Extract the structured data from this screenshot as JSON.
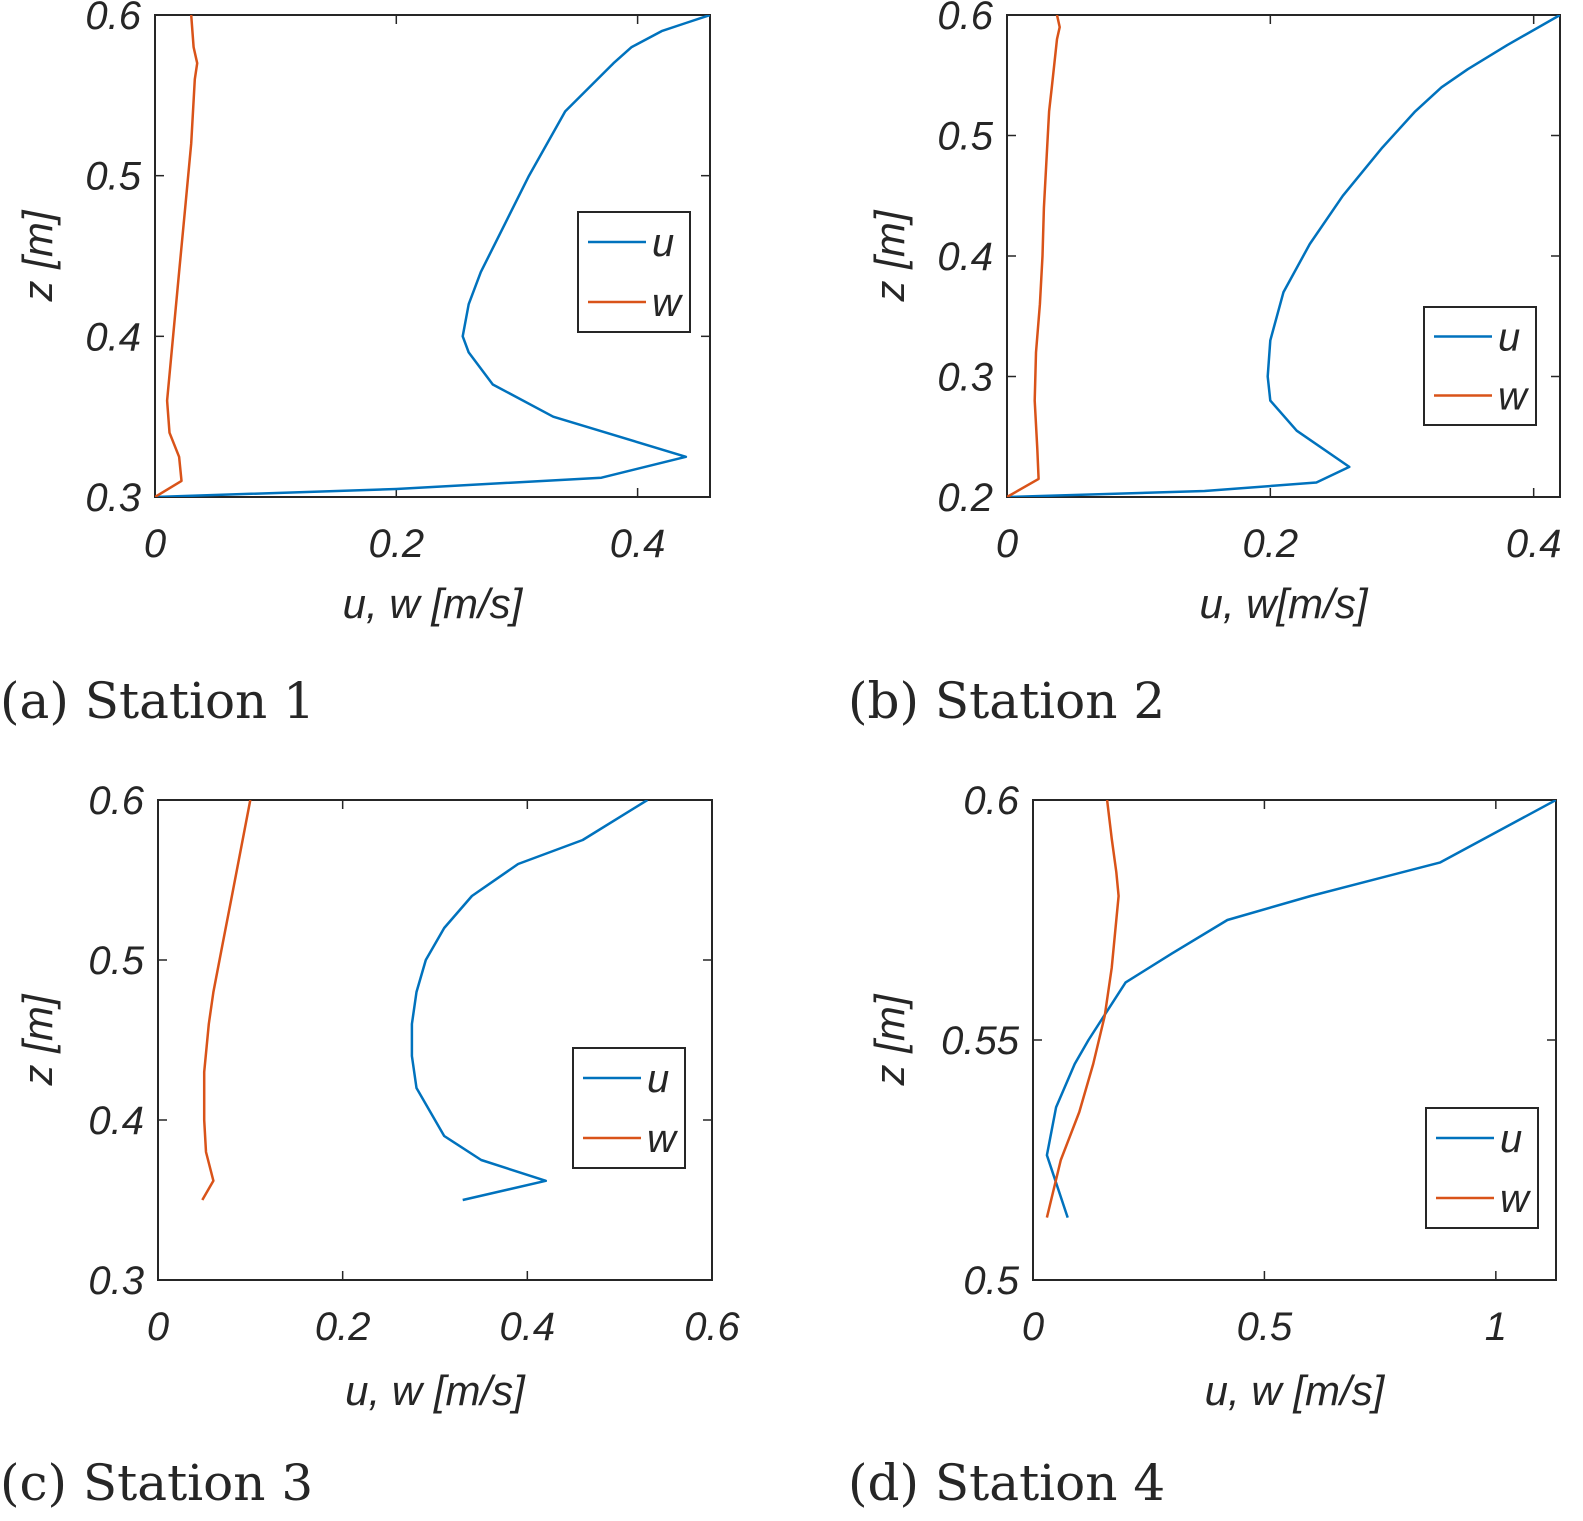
{
  "chart_data": [
    {
      "type": "line",
      "caption": "(a) Station 1",
      "xlabel": "u, w [m/s]",
      "ylabel": "z [m]",
      "xlim": [
        0,
        0.46
      ],
      "ylim": [
        0.3,
        0.6
      ],
      "xticks": [
        0,
        0.2,
        0.4
      ],
      "xtick_labels": [
        "0",
        "0.2",
        "0.4"
      ],
      "yticks": [
        0.3,
        0.4,
        0.5,
        0.6
      ],
      "ytick_labels": [
        "0.3",
        "0.4",
        "0.5",
        "0.6"
      ],
      "legend": "center-right",
      "series": [
        {
          "name": "u",
          "color": "#0072BD",
          "x": [
            0,
            0.2,
            0.37,
            0.44,
            0.33,
            0.28,
            0.26,
            0.255,
            0.26,
            0.27,
            0.29,
            0.31,
            0.34,
            0.38,
            0.395,
            0.42,
            0.44,
            0.46
          ],
          "y": [
            0.3,
            0.305,
            0.312,
            0.325,
            0.35,
            0.37,
            0.39,
            0.4,
            0.42,
            0.44,
            0.47,
            0.5,
            0.54,
            0.57,
            0.58,
            0.59,
            0.595,
            0.6
          ]
        },
        {
          "name": "w",
          "color": "#D95319",
          "x": [
            0,
            0.022,
            0.02,
            0.012,
            0.01,
            0.015,
            0.02,
            0.025,
            0.03,
            0.033,
            0.035,
            0.032,
            0.03
          ],
          "y": [
            0.3,
            0.31,
            0.325,
            0.34,
            0.36,
            0.4,
            0.44,
            0.48,
            0.52,
            0.56,
            0.57,
            0.58,
            0.6
          ]
        }
      ]
    },
    {
      "type": "line",
      "caption": "(b) Station 2",
      "xlabel": "u, w[m/s]",
      "ylabel": "z [m]",
      "xlim": [
        0,
        0.42
      ],
      "ylim": [
        0.2,
        0.6
      ],
      "xticks": [
        0,
        0.2,
        0.4
      ],
      "xtick_labels": [
        "0",
        "0.2",
        "0.4"
      ],
      "yticks": [
        0.2,
        0.3,
        0.4,
        0.5,
        0.6
      ],
      "ytick_labels": [
        "0.2",
        "0.3",
        "0.4",
        "0.5",
        "0.6"
      ],
      "legend": "lower-right",
      "series": [
        {
          "name": "u",
          "color": "#0072BD",
          "x": [
            0,
            0.15,
            0.235,
            0.26,
            0.22,
            0.2,
            0.198,
            0.2,
            0.21,
            0.23,
            0.255,
            0.285,
            0.31,
            0.33,
            0.35,
            0.38,
            0.42
          ],
          "y": [
            0.2,
            0.205,
            0.212,
            0.225,
            0.255,
            0.28,
            0.3,
            0.33,
            0.37,
            0.41,
            0.45,
            0.49,
            0.52,
            0.54,
            0.555,
            0.575,
            0.6
          ]
        },
        {
          "name": "w",
          "color": "#D95319",
          "x": [
            0,
            0.024,
            0.023,
            0.021,
            0.022,
            0.025,
            0.027,
            0.028,
            0.03,
            0.032,
            0.034,
            0.036,
            0.038,
            0.04,
            0.038
          ],
          "y": [
            0.2,
            0.215,
            0.24,
            0.28,
            0.32,
            0.36,
            0.4,
            0.44,
            0.48,
            0.52,
            0.54,
            0.56,
            0.58,
            0.59,
            0.6
          ]
        }
      ]
    },
    {
      "type": "line",
      "caption": "(c) Station 3",
      "xlabel": "u, w [m/s]",
      "ylabel": "z [m]",
      "xlim": [
        0,
        0.6
      ],
      "ylim": [
        0.3,
        0.6
      ],
      "xticks": [
        0,
        0.2,
        0.4,
        0.6
      ],
      "xtick_labels": [
        "0",
        "0.2",
        "0.4",
        "0.6"
      ],
      "yticks": [
        0.3,
        0.4,
        0.5,
        0.6
      ],
      "ytick_labels": [
        "0.3",
        "0.4",
        "0.5",
        "0.6"
      ],
      "legend": "lower-right",
      "series": [
        {
          "name": "u",
          "color": "#0072BD",
          "x": [
            0.33,
            0.42,
            0.35,
            0.31,
            0.28,
            0.275,
            0.275,
            0.28,
            0.29,
            0.31,
            0.34,
            0.39,
            0.46,
            0.53
          ],
          "y": [
            0.35,
            0.362,
            0.375,
            0.39,
            0.42,
            0.44,
            0.46,
            0.48,
            0.5,
            0.52,
            0.54,
            0.56,
            0.575,
            0.6
          ]
        },
        {
          "name": "w",
          "color": "#D95319",
          "x": [
            0.048,
            0.06,
            0.052,
            0.05,
            0.05,
            0.055,
            0.06,
            0.07,
            0.08,
            0.09,
            0.1
          ],
          "y": [
            0.35,
            0.362,
            0.38,
            0.4,
            0.43,
            0.46,
            0.48,
            0.51,
            0.54,
            0.57,
            0.6
          ]
        }
      ]
    },
    {
      "type": "line",
      "caption": "(d) Station 4",
      "xlabel": "u, w [m/s]",
      "ylabel": "z [m]",
      "xlim": [
        0,
        1.13
      ],
      "ylim": [
        0.5,
        0.6
      ],
      "xticks": [
        0,
        0.5,
        1
      ],
      "xtick_labels": [
        "0",
        "0.5",
        "1"
      ],
      "yticks": [
        0.5,
        0.55,
        0.6
      ],
      "ytick_labels": [
        "0.5",
        "0.55",
        "0.6"
      ],
      "legend": "lower-right",
      "series": [
        {
          "name": "u",
          "color": "#0072BD",
          "x": [
            0.075,
            0.03,
            0.05,
            0.09,
            0.12,
            0.2,
            0.3,
            0.42,
            0.6,
            0.88,
            1.13
          ],
          "y": [
            0.513,
            0.526,
            0.536,
            0.545,
            0.55,
            0.562,
            0.568,
            0.575,
            0.58,
            0.587,
            0.6
          ]
        },
        {
          "name": "w",
          "color": "#D95319",
          "x": [
            0.03,
            0.06,
            0.1,
            0.13,
            0.155,
            0.17,
            0.18,
            0.185,
            0.18,
            0.17,
            0.16
          ],
          "y": [
            0.513,
            0.525,
            0.535,
            0.545,
            0.555,
            0.565,
            0.575,
            0.58,
            0.585,
            0.592,
            0.6
          ]
        }
      ]
    }
  ]
}
